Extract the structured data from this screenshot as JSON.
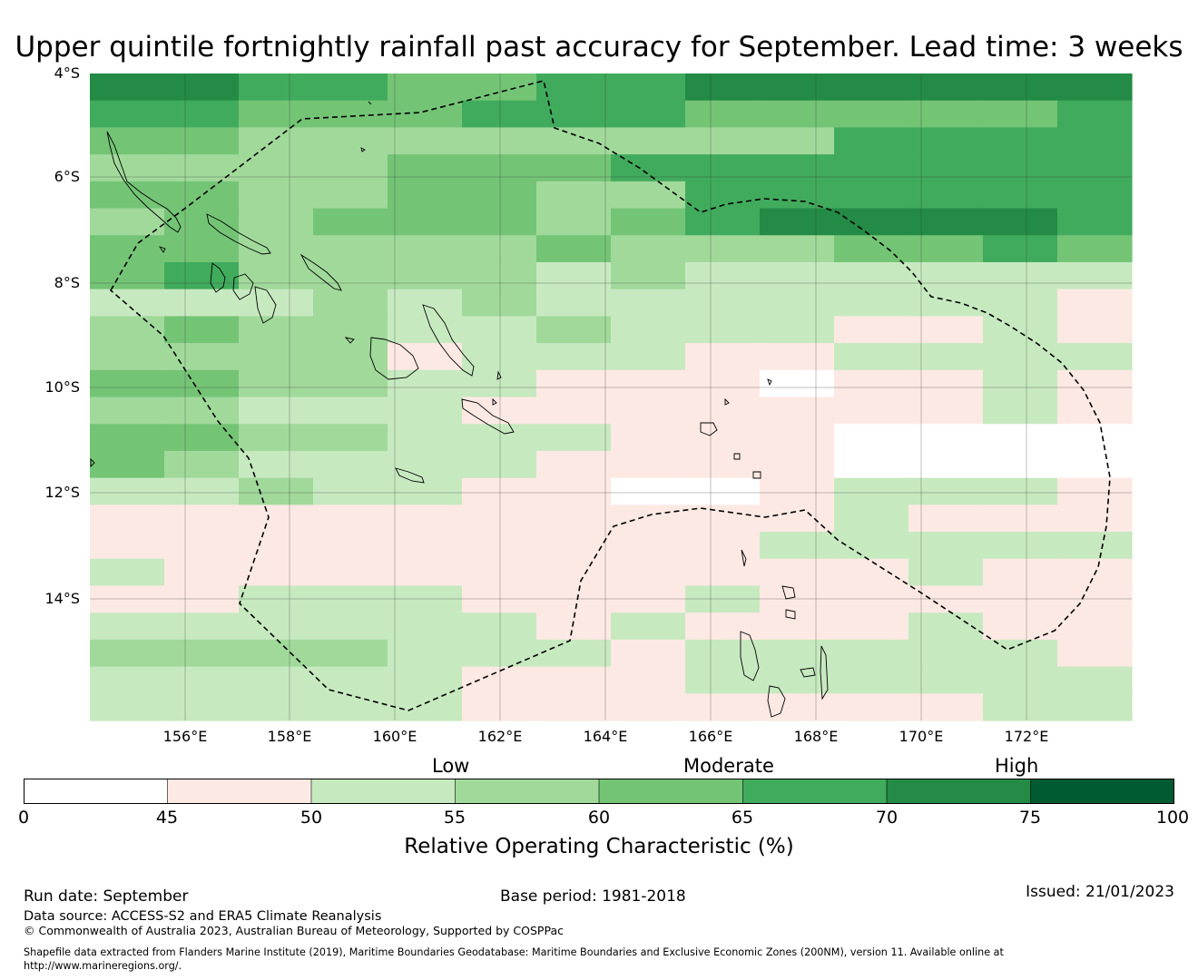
{
  "title": "Upper quintile fortnightly rainfall past accuracy for September. Lead time: 3 weeks",
  "map": {
    "lat_labels": [
      "4°S",
      "6°S",
      "8°S",
      "10°S",
      "12°S",
      "14°S"
    ],
    "lon_labels": [
      "156°E",
      "158°E",
      "160°E",
      "162°E",
      "164°E",
      "166°E",
      "168°E",
      "170°E",
      "172°E"
    ],
    "grid_lon_start": 154.2,
    "grid_lon_step": 0.833,
    "grid_lat_start": -4.0,
    "grid_lat_step": 0.55,
    "grid_rows": [
      "66554455666666",
      "55444555444445",
      "44333333335555",
      "33334445555555",
      "44334433555555",
      "34344434566665",
      "44333343334454",
      "45333323222222",
      "22232322222221",
      "34332232221121",
      "33331222112222",
      "44332211101121",
      "33222111111121",
      "44332221110000",
      "43222211110000",
      "22322110012221",
      "11111111112111",
      "11111111122222",
      "21111111111211",
      "11222111211111",
      "22222212111211",
      "33332221222221",
      "22222111222222",
      "22222111111122"
    ],
    "legend_bins": [
      {
        "range": [
          0,
          45
        ],
        "color": "#ffffff"
      },
      {
        "range": [
          45,
          50
        ],
        "color": "#fde9e3"
      },
      {
        "range": [
          50,
          55
        ],
        "color": "#c7e9c0"
      },
      {
        "range": [
          55,
          60
        ],
        "color": "#a1d99b"
      },
      {
        "range": [
          60,
          65
        ],
        "color": "#74c476"
      },
      {
        "range": [
          65,
          70
        ],
        "color": "#41ab5d"
      },
      {
        "range": [
          70,
          75
        ],
        "color": "#238b45"
      },
      {
        "range": [
          75,
          100
        ],
        "color": "#005a32"
      }
    ]
  },
  "colorbar": {
    "categories": [
      "Low",
      "Moderate",
      "High"
    ],
    "ticks": [
      "0",
      "45",
      "50",
      "55",
      "60",
      "65",
      "70",
      "75",
      "100"
    ],
    "title": "Relative Operating Characteristic (%)"
  },
  "footer": {
    "run_date": "Run date: September",
    "base_period": "Base period: 1981-2018",
    "issued": "Issued: 21/01/2023",
    "data_source": "Data source: ACCESS-S2 and ERA5 Climate Reanalysis",
    "copyright": "© Commonwealth of Australia 2023, Australian Bureau of Meteorology, Supported by COSPPac",
    "shapefile_line1": "Shapefile data extracted from Flanders Marine Institute (2019), Maritime Boundaries Geodatabase: Maritime Boundaries and Exclusive Economic Zones (200NM), version 11. Available online at",
    "shapefile_line2": "http://www.marineregions.org/."
  }
}
